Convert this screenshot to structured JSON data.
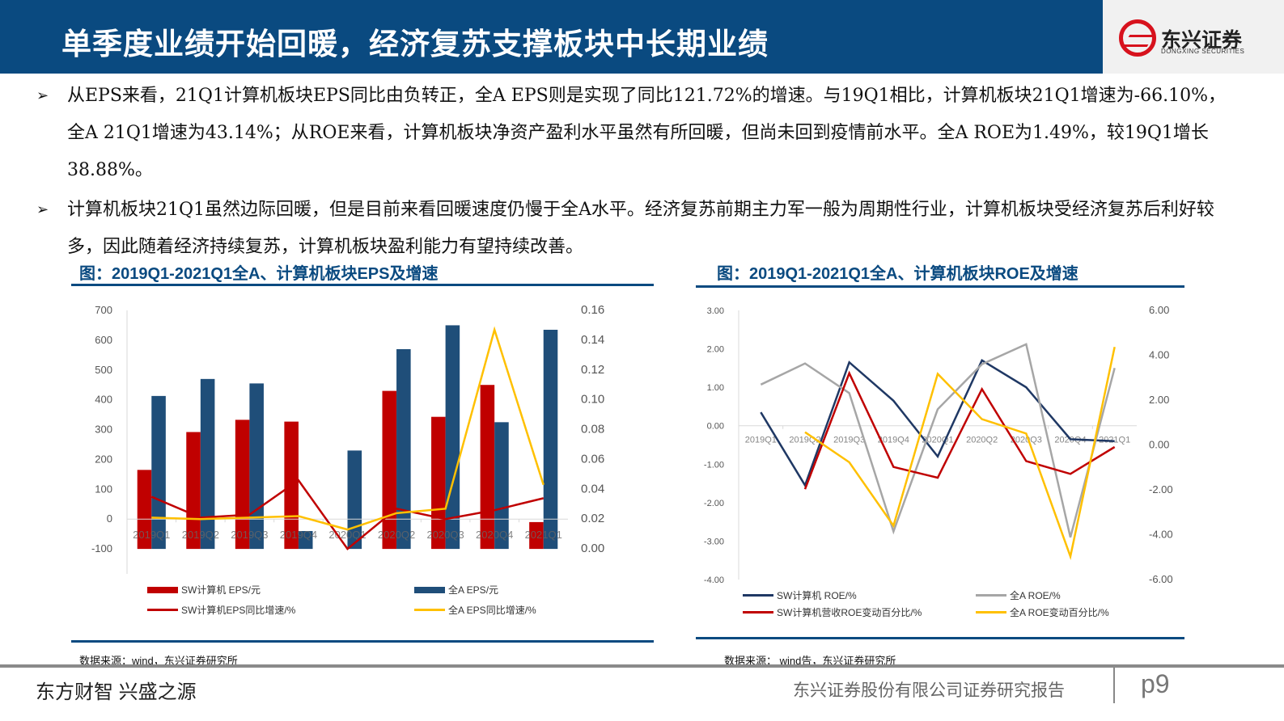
{
  "header": {
    "title": "单季度业绩开始回暖，经济复苏支撑板块中长期业绩",
    "logo_cn": "东兴证券",
    "logo_en": "DONGXING SECURITIES"
  },
  "bullets": [
    {
      "icon": "arrow-bullet-icon",
      "text": "从EPS来看，21Q1计算机板块EPS同比由负转正，全A EPS则是实现了同比121.72%的增速。与19Q1相比，计算机板块21Q1增速为-66.10%，全A 21Q1增速为43.14%；从ROE来看，计算机板块净资产盈利水平虽然有所回暖，但尚未回到疫情前水平。全A ROE为1.49%，较19Q1增长38.88%。"
    },
    {
      "icon": "arrow-bullet-icon",
      "text": "计算机板块21Q1虽然边际回暖，但是目前来看回暖速度仍慢于全A水平。经济复苏前期主力军一般为周期性行业，计算机板块受经济复苏后利好较多，因此随着经济持续复苏，计算机板块盈利能力有望持续改善。"
    }
  ],
  "chart_data": [
    {
      "type": "bar",
      "title": "图：2019Q1-2021Q1全A、计算机板块EPS及增速",
      "source": "数据来源：wind，东兴证券研究所",
      "categories": [
        "2019Q1",
        "2019Q2",
        "2019Q3",
        "2019Q4",
        "2020Q1",
        "2020Q2",
        "2020Q3",
        "2020Q4",
        "2021Q1"
      ],
      "left_axis": {
        "ylim": [
          -200,
          700
        ],
        "ticks": [
          -200,
          -100,
          0,
          100,
          200,
          300,
          400,
          500,
          600,
          700
        ]
      },
      "right_axis": {
        "ylim": [
          -0.02,
          0.16
        ],
        "ticks": [
          "-0.02",
          "0.00",
          "0.02",
          "0.04",
          "0.06",
          "0.08",
          "0.10",
          "0.12",
          "0.14",
          "0.16"
        ]
      },
      "bar_base": -100,
      "legend_position": "bottom",
      "series": [
        {
          "name": "SW计算机 EPS/元",
          "type": "bar",
          "axis": "left",
          "color": "#c00000",
          "values": [
            165,
            292,
            333,
            327,
            null,
            430,
            343,
            450,
            -10
          ]
        },
        {
          "name": "全A EPS/元",
          "type": "bar",
          "axis": "left",
          "color": "#1f4e79",
          "values": [
            413,
            470,
            455,
            -40,
            230,
            570,
            650,
            325,
            635
          ]
        },
        {
          "name": "SW计算机EPS同比增速/%",
          "type": "line",
          "axis": "right",
          "color": "#c00000",
          "values": [
            0.035,
            0.021,
            0.023,
            0.046,
            0.0,
            0.027,
            0.02,
            0.026,
            0.034
          ]
        },
        {
          "name": "全A EPS同比增速/%",
          "type": "line",
          "axis": "right",
          "color": "#ffc000",
          "values": [
            0.021,
            0.02,
            0.021,
            0.022,
            0.013,
            0.024,
            0.027,
            0.147,
            0.043
          ]
        }
      ]
    },
    {
      "type": "line",
      "title": "图：2019Q1-2021Q1全A、计算机板块ROE及增速",
      "source": "数据来源： wind告，东兴证券研究所",
      "categories": [
        "2019Q1",
        "2019Q2",
        "2019Q3",
        "2019Q4",
        "2020Q1",
        "2020Q2",
        "2020Q3",
        "2020Q4",
        "2021Q1"
      ],
      "left_axis": {
        "ylim": [
          -4,
          3
        ],
        "ticks": [
          "-4.00",
          "-3.00",
          "-2.00",
          "-1.00",
          "0.00",
          "1.00",
          "2.00",
          "3.00"
        ]
      },
      "right_axis": {
        "ylim": [
          -6,
          6
        ],
        "ticks": [
          "-6.00",
          "-4.00",
          "-2.00",
          "0.00",
          "2.00",
          "4.00",
          "6.00"
        ]
      },
      "legend_position": "bottom",
      "series": [
        {
          "name": "SW计算机 ROE/%",
          "axis": "left",
          "color": "#1f3864",
          "values": [
            0.35,
            -1.55,
            1.65,
            0.65,
            -0.8,
            1.7,
            1.0,
            -0.35,
            -0.4
          ]
        },
        {
          "name": "全A ROE/%",
          "axis": "left",
          "color": "#a6a6a6",
          "values": [
            1.07,
            1.62,
            0.85,
            -2.75,
            0.43,
            1.6,
            2.12,
            -2.9,
            1.5
          ]
        },
        {
          "name": "SW计算机营收ROE变动百分比/%",
          "axis": "right",
          "color": "#c00000",
          "values": [
            null,
            -1.97,
            3.2,
            -0.98,
            -1.46,
            2.49,
            -0.72,
            -1.29,
            -0.09
          ]
        },
        {
          "name": "全A ROE变动百分比/%",
          "axis": "right",
          "color": "#ffc000",
          "values": [
            null,
            0.57,
            -0.77,
            -3.6,
            3.17,
            1.15,
            0.51,
            -4.97,
            4.37
          ]
        }
      ]
    }
  ],
  "footer": {
    "slogan": "东方财智 兴盛之源",
    "company": "东兴证券股份有限公司证券研究报告",
    "page": "p9"
  }
}
